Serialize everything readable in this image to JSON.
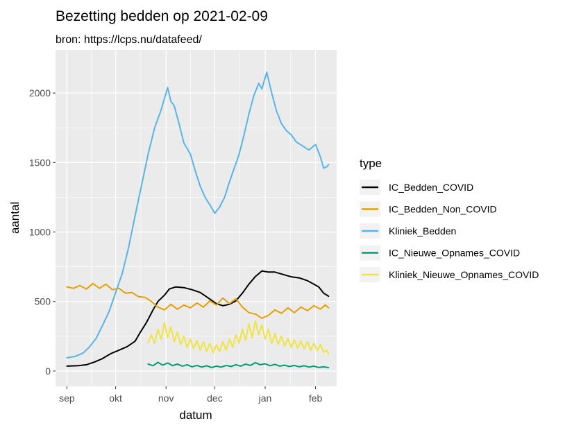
{
  "chart_data": {
    "type": "line",
    "title": "Bezetting bedden op 2021-02-09",
    "subtitle": "bron: https://lcps.nu/datafeed/",
    "xlabel": "datum",
    "ylabel": "aantal",
    "x_unit": "date",
    "x_ticks": [
      {
        "date": "2020-09-01",
        "label": "sep"
      },
      {
        "date": "2020-10-01",
        "label": "okt"
      },
      {
        "date": "2020-11-01",
        "label": "nov"
      },
      {
        "date": "2020-12-01",
        "label": "dec"
      },
      {
        "date": "2021-01-01",
        "label": "jan"
      },
      {
        "date": "2021-02-01",
        "label": "feb"
      }
    ],
    "xlim": [
      "2020-08-25",
      "2021-02-14"
    ],
    "y_ticks": [
      0,
      500,
      1000,
      1500,
      2000
    ],
    "ylim": [
      -110,
      2310
    ],
    "grid": true,
    "legend": {
      "title": "type",
      "position": "right"
    },
    "series": [
      {
        "name": "IC_Bedden_COVID",
        "color": "#000000",
        "points": [
          [
            "2020-09-01",
            35
          ],
          [
            "2020-09-08",
            38
          ],
          [
            "2020-09-13",
            45
          ],
          [
            "2020-09-18",
            65
          ],
          [
            "2020-09-23",
            90
          ],
          [
            "2020-09-28",
            125
          ],
          [
            "2020-10-03",
            150
          ],
          [
            "2020-10-08",
            175
          ],
          [
            "2020-10-13",
            215
          ],
          [
            "2020-10-16",
            275
          ],
          [
            "2020-10-20",
            350
          ],
          [
            "2020-10-24",
            440
          ],
          [
            "2020-10-27",
            500
          ],
          [
            "2020-10-31",
            545
          ],
          [
            "2020-11-03",
            590
          ],
          [
            "2020-11-07",
            605
          ],
          [
            "2020-11-12",
            600
          ],
          [
            "2020-11-17",
            585
          ],
          [
            "2020-11-22",
            565
          ],
          [
            "2020-11-27",
            525
          ],
          [
            "2020-12-02",
            485
          ],
          [
            "2020-12-06",
            470
          ],
          [
            "2020-12-10",
            480
          ],
          [
            "2020-12-14",
            505
          ],
          [
            "2020-12-18",
            560
          ],
          [
            "2020-12-22",
            625
          ],
          [
            "2020-12-26",
            680
          ],
          [
            "2020-12-30",
            720
          ],
          [
            "2021-01-03",
            712
          ],
          [
            "2021-01-07",
            712
          ],
          [
            "2021-01-12",
            695
          ],
          [
            "2021-01-17",
            678
          ],
          [
            "2021-01-22",
            670
          ],
          [
            "2021-01-27",
            650
          ],
          [
            "2021-01-31",
            625
          ],
          [
            "2021-02-03",
            605
          ],
          [
            "2021-02-06",
            560
          ],
          [
            "2021-02-09",
            538
          ]
        ]
      },
      {
        "name": "IC_Bedden_Non_COVID",
        "color": "#E69F00",
        "points": [
          [
            "2020-09-01",
            605
          ],
          [
            "2020-09-05",
            595
          ],
          [
            "2020-09-09",
            615
          ],
          [
            "2020-09-13",
            590
          ],
          [
            "2020-09-17",
            630
          ],
          [
            "2020-09-21",
            595
          ],
          [
            "2020-09-25",
            625
          ],
          [
            "2020-09-29",
            585
          ],
          [
            "2020-10-03",
            595
          ],
          [
            "2020-10-07",
            560
          ],
          [
            "2020-10-11",
            565
          ],
          [
            "2020-10-15",
            535
          ],
          [
            "2020-10-19",
            530
          ],
          [
            "2020-10-23",
            500
          ],
          [
            "2020-10-27",
            460
          ],
          [
            "2020-10-31",
            440
          ],
          [
            "2020-11-04",
            480
          ],
          [
            "2020-11-08",
            445
          ],
          [
            "2020-11-12",
            475
          ],
          [
            "2020-11-16",
            455
          ],
          [
            "2020-11-20",
            490
          ],
          [
            "2020-11-24",
            460
          ],
          [
            "2020-11-28",
            505
          ],
          [
            "2020-12-02",
            475
          ],
          [
            "2020-12-06",
            525
          ],
          [
            "2020-12-10",
            485
          ],
          [
            "2020-12-14",
            520
          ],
          [
            "2020-12-18",
            460
          ],
          [
            "2020-12-22",
            420
          ],
          [
            "2020-12-26",
            410
          ],
          [
            "2020-12-30",
            380
          ],
          [
            "2021-01-03",
            400
          ],
          [
            "2021-01-07",
            440
          ],
          [
            "2021-01-11",
            415
          ],
          [
            "2021-01-15",
            455
          ],
          [
            "2021-01-19",
            420
          ],
          [
            "2021-01-23",
            460
          ],
          [
            "2021-01-27",
            435
          ],
          [
            "2021-01-31",
            470
          ],
          [
            "2021-02-04",
            445
          ],
          [
            "2021-02-07",
            475
          ],
          [
            "2021-02-09",
            455
          ]
        ]
      },
      {
        "name": "Kliniek_Bedden",
        "color": "#56B4E9",
        "points": [
          [
            "2020-09-01",
            95
          ],
          [
            "2020-09-06",
            105
          ],
          [
            "2020-09-11",
            130
          ],
          [
            "2020-09-15",
            175
          ],
          [
            "2020-09-19",
            235
          ],
          [
            "2020-09-23",
            330
          ],
          [
            "2020-09-27",
            430
          ],
          [
            "2020-10-01",
            565
          ],
          [
            "2020-10-05",
            700
          ],
          [
            "2020-10-09",
            890
          ],
          [
            "2020-10-13",
            1120
          ],
          [
            "2020-10-17",
            1340
          ],
          [
            "2020-10-21",
            1560
          ],
          [
            "2020-10-25",
            1750
          ],
          [
            "2020-10-29",
            1880
          ],
          [
            "2020-11-01",
            2000
          ],
          [
            "2020-11-02",
            2040
          ],
          [
            "2020-11-04",
            1940
          ],
          [
            "2020-11-06",
            1910
          ],
          [
            "2020-11-09",
            1780
          ],
          [
            "2020-11-12",
            1640
          ],
          [
            "2020-11-16",
            1560
          ],
          [
            "2020-11-19",
            1440
          ],
          [
            "2020-11-22",
            1330
          ],
          [
            "2020-11-25",
            1250
          ],
          [
            "2020-11-28",
            1195
          ],
          [
            "2020-12-01",
            1135
          ],
          [
            "2020-12-04",
            1180
          ],
          [
            "2020-12-07",
            1250
          ],
          [
            "2020-12-10",
            1360
          ],
          [
            "2020-12-13",
            1460
          ],
          [
            "2020-12-16",
            1560
          ],
          [
            "2020-12-19",
            1700
          ],
          [
            "2020-12-22",
            1850
          ],
          [
            "2020-12-25",
            1980
          ],
          [
            "2020-12-28",
            2070
          ],
          [
            "2020-12-30",
            2030
          ],
          [
            "2021-01-02",
            2150
          ],
          [
            "2021-01-05",
            2000
          ],
          [
            "2021-01-08",
            1870
          ],
          [
            "2021-01-11",
            1780
          ],
          [
            "2021-01-14",
            1730
          ],
          [
            "2021-01-17",
            1700
          ],
          [
            "2021-01-20",
            1650
          ],
          [
            "2021-01-24",
            1620
          ],
          [
            "2021-01-28",
            1590
          ],
          [
            "2021-02-01",
            1630
          ],
          [
            "2021-02-04",
            1540
          ],
          [
            "2021-02-06",
            1460
          ],
          [
            "2021-02-08",
            1470
          ],
          [
            "2021-02-09",
            1485
          ]
        ]
      },
      {
        "name": "IC_Nieuwe_Opnames_COVID",
        "color": "#009E73",
        "points": [
          [
            "2020-10-21",
            50
          ],
          [
            "2020-10-24",
            38
          ],
          [
            "2020-10-27",
            62
          ],
          [
            "2020-10-30",
            42
          ],
          [
            "2020-11-02",
            58
          ],
          [
            "2020-11-05",
            38
          ],
          [
            "2020-11-08",
            50
          ],
          [
            "2020-11-11",
            35
          ],
          [
            "2020-11-14",
            45
          ],
          [
            "2020-11-17",
            30
          ],
          [
            "2020-11-20",
            40
          ],
          [
            "2020-11-23",
            28
          ],
          [
            "2020-11-26",
            38
          ],
          [
            "2020-11-29",
            25
          ],
          [
            "2020-12-02",
            35
          ],
          [
            "2020-12-05",
            28
          ],
          [
            "2020-12-08",
            40
          ],
          [
            "2020-12-11",
            32
          ],
          [
            "2020-12-14",
            45
          ],
          [
            "2020-12-17",
            35
          ],
          [
            "2020-12-20",
            50
          ],
          [
            "2020-12-23",
            40
          ],
          [
            "2020-12-26",
            60
          ],
          [
            "2020-12-29",
            45
          ],
          [
            "2021-01-01",
            52
          ],
          [
            "2021-01-04",
            38
          ],
          [
            "2021-01-07",
            48
          ],
          [
            "2021-01-10",
            35
          ],
          [
            "2021-01-13",
            42
          ],
          [
            "2021-01-16",
            32
          ],
          [
            "2021-01-19",
            40
          ],
          [
            "2021-01-22",
            30
          ],
          [
            "2021-01-25",
            38
          ],
          [
            "2021-01-28",
            28
          ],
          [
            "2021-01-31",
            35
          ],
          [
            "2021-02-03",
            25
          ],
          [
            "2021-02-06",
            30
          ],
          [
            "2021-02-09",
            24
          ]
        ]
      },
      {
        "name": "Kliniek_Nieuwe_Opnames_COVID",
        "color": "#F0E442",
        "points": [
          [
            "2020-10-21",
            205
          ],
          [
            "2020-10-23",
            260
          ],
          [
            "2020-10-25",
            200
          ],
          [
            "2020-10-27",
            300
          ],
          [
            "2020-10-29",
            230
          ],
          [
            "2020-10-31",
            350
          ],
          [
            "2020-11-02",
            240
          ],
          [
            "2020-11-04",
            320
          ],
          [
            "2020-11-06",
            210
          ],
          [
            "2020-11-08",
            280
          ],
          [
            "2020-11-10",
            190
          ],
          [
            "2020-11-12",
            250
          ],
          [
            "2020-11-14",
            170
          ],
          [
            "2020-11-16",
            230
          ],
          [
            "2020-11-18",
            160
          ],
          [
            "2020-11-20",
            220
          ],
          [
            "2020-11-22",
            150
          ],
          [
            "2020-11-24",
            210
          ],
          [
            "2020-11-26",
            140
          ],
          [
            "2020-11-28",
            200
          ],
          [
            "2020-11-30",
            130
          ],
          [
            "2020-12-02",
            190
          ],
          [
            "2020-12-04",
            140
          ],
          [
            "2020-12-06",
            210
          ],
          [
            "2020-12-08",
            150
          ],
          [
            "2020-12-10",
            230
          ],
          [
            "2020-12-12",
            170
          ],
          [
            "2020-12-14",
            260
          ],
          [
            "2020-12-16",
            200
          ],
          [
            "2020-12-18",
            300
          ],
          [
            "2020-12-20",
            220
          ],
          [
            "2020-12-22",
            340
          ],
          [
            "2020-12-24",
            240
          ],
          [
            "2020-12-26",
            360
          ],
          [
            "2020-12-28",
            260
          ],
          [
            "2020-12-30",
            330
          ],
          [
            "2021-01-01",
            230
          ],
          [
            "2021-01-03",
            300
          ],
          [
            "2021-01-05",
            200
          ],
          [
            "2021-01-07",
            270
          ],
          [
            "2021-01-09",
            190
          ],
          [
            "2021-01-11",
            250
          ],
          [
            "2021-01-13",
            180
          ],
          [
            "2021-01-15",
            235
          ],
          [
            "2021-01-17",
            170
          ],
          [
            "2021-01-19",
            225
          ],
          [
            "2021-01-21",
            165
          ],
          [
            "2021-01-23",
            215
          ],
          [
            "2021-01-25",
            160
          ],
          [
            "2021-01-27",
            210
          ],
          [
            "2021-01-29",
            150
          ],
          [
            "2021-01-31",
            200
          ],
          [
            "2021-02-02",
            145
          ],
          [
            "2021-02-04",
            190
          ],
          [
            "2021-02-06",
            135
          ],
          [
            "2021-02-08",
            150
          ],
          [
            "2021-02-09",
            120
          ]
        ]
      }
    ]
  }
}
